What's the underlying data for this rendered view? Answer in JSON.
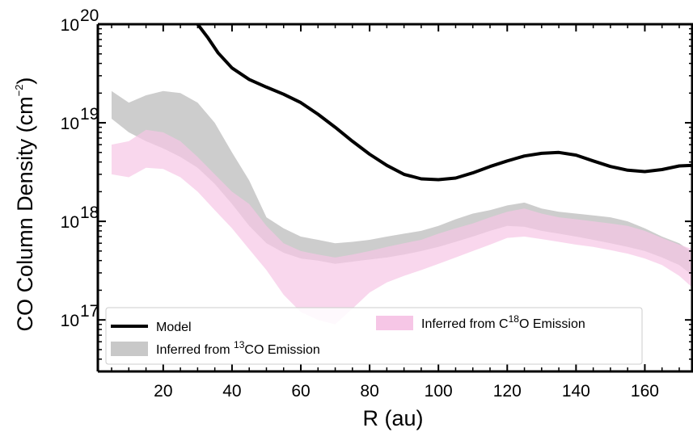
{
  "chart_data": {
    "type": "area",
    "xlabel": "R (au)",
    "ylabel_prefix": "CO Column Density (cm",
    "ylabel_sup": "−2",
    "ylabel_suffix": ")",
    "xlim": [
      1,
      174
    ],
    "ylim": [
      3e+16,
      1e+20
    ],
    "yscale": "log",
    "grid": false,
    "legend_position": "bottom-left",
    "x_ticks": [
      20,
      40,
      60,
      80,
      100,
      120,
      140,
      160
    ],
    "x_tick_labels": [
      "20",
      "40",
      "60",
      "80",
      "100",
      "120",
      "140",
      "160"
    ],
    "y_ticks": [
      1e+17,
      1e+18,
      1e+19,
      1e+20
    ],
    "y_tick_labels": [
      {
        "base": "10",
        "exp": "17"
      },
      {
        "base": "10",
        "exp": "18"
      },
      {
        "base": "10",
        "exp": "19"
      },
      {
        "base": "10",
        "exp": "20"
      }
    ],
    "colors": {
      "model": "#000000",
      "band_13co": "#c8c8c8",
      "band_c18o": "#f6c6e6"
    },
    "legend": {
      "model": "Model",
      "band_13co_prefix": "Inferred from ",
      "band_13co_sup": "13",
      "band_13co_suffix": "CO Emission",
      "band_c18o_prefix": "Inferred from C",
      "band_c18o_sup": "18",
      "band_c18o_suffix": "O Emission"
    },
    "series": [
      {
        "key": "model",
        "style": "line",
        "x": [
          30,
          33,
          36,
          40,
          45,
          50,
          55,
          60,
          65,
          70,
          75,
          80,
          85,
          90,
          95,
          100,
          105,
          110,
          115,
          120,
          125,
          130,
          135,
          140,
          145,
          150,
          155,
          160,
          165,
          170,
          174
        ],
        "y": [
          1e+20,
          7.3e+19,
          5.1e+19,
          3.6e+19,
          2.75e+19,
          2.3e+19,
          1.95e+19,
          1.6e+19,
          1.22e+19,
          9e+18,
          6.5e+18,
          4.8e+18,
          3.7e+18,
          3e+18,
          2.7e+18,
          2.65e+18,
          2.75e+18,
          3.1e+18,
          3.6e+18,
          4.1e+18,
          4.6e+18,
          4.9e+18,
          5e+18,
          4.7e+18,
          4.1e+18,
          3.6e+18,
          3.3e+18,
          3.2e+18,
          3.35e+18,
          3.65e+18,
          3.7e+18
        ]
      },
      {
        "key": "band_13co",
        "style": "band",
        "x": [
          5,
          10,
          15,
          20,
          25,
          30,
          35,
          40,
          45,
          50,
          55,
          60,
          65,
          70,
          75,
          80,
          85,
          90,
          95,
          100,
          105,
          110,
          115,
          120,
          125,
          130,
          135,
          140,
          145,
          150,
          155,
          160,
          165,
          170,
          174
        ],
        "upper": [
          2.1e+19,
          1.6e+19,
          1.9e+19,
          2.1e+19,
          2e+19,
          1.6e+19,
          1e+19,
          5e+18,
          2.6e+18,
          1.1e+18,
          8.5e+17,
          7e+17,
          6.5e+17,
          6e+17,
          6.2e+17,
          6.5e+17,
          7e+17,
          7.5e+17,
          8e+17,
          9e+17,
          1.05e+18,
          1.2e+18,
          1.3e+18,
          1.45e+18,
          1.55e+18,
          1.35e+18,
          1.25e+18,
          1.2e+18,
          1.15e+18,
          1.1e+18,
          1e+18,
          8.5e+17,
          7e+17,
          6e+17,
          4.8e+17
        ],
        "lower": [
          1.1e+19,
          8e+18,
          6.5e+18,
          5.5e+18,
          4.5e+18,
          3.5e+18,
          2.4e+18,
          1.5e+18,
          9e+17,
          6e+17,
          4.8e+17,
          4.2e+17,
          4e+17,
          3.7e+17,
          3.9e+17,
          4.1e+17,
          4.3e+17,
          4.6e+17,
          5e+17,
          5.5e+17,
          6.2e+17,
          7e+17,
          8e+17,
          9e+17,
          8.8e+17,
          8e+17,
          7.5e+17,
          7e+17,
          6.5e+17,
          6e+17,
          5.5e+17,
          5e+17,
          4.3e+17,
          3.6e+17,
          2.8e+17
        ]
      },
      {
        "key": "band_c18o",
        "style": "band",
        "x": [
          5,
          10,
          15,
          20,
          25,
          30,
          35,
          40,
          45,
          50,
          55,
          60,
          65,
          70,
          75,
          80,
          85,
          90,
          95,
          100,
          105,
          110,
          115,
          120,
          125,
          130,
          135,
          140,
          145,
          150,
          155,
          160,
          165,
          170,
          174
        ],
        "upper": [
          6e+18,
          6.5e+18,
          8.5e+18,
          8e+18,
          6.5e+18,
          4.5e+18,
          3e+18,
          2e+18,
          1.5e+18,
          9e+17,
          6e+17,
          5e+17,
          4.6e+17,
          4.3e+17,
          4.6e+17,
          5e+17,
          5.5e+17,
          6e+17,
          6.5e+17,
          7.5e+17,
          8.5e+17,
          9.5e+17,
          1.1e+18,
          1.25e+18,
          1.35e+18,
          1.2e+18,
          1.1e+18,
          1.05e+18,
          1e+18,
          9.5e+17,
          9e+17,
          8e+17,
          6.8e+17,
          5.8e+17,
          5.2e+17
        ],
        "lower": [
          3e+18,
          2.8e+18,
          3.5e+18,
          3.4e+18,
          2.8e+18,
          2e+18,
          1.3e+18,
          8.5e+17,
          5.2e+17,
          3.2e+17,
          1.8e+17,
          1.2e+17,
          1e+17,
          9e+16,
          1.3e+17,
          1.9e+17,
          2.4e+17,
          2.8e+17,
          3.2e+17,
          3.7e+17,
          4.3e+17,
          5e+17,
          5.8e+17,
          6.8e+17,
          7e+17,
          6.6e+17,
          6.2e+17,
          5.8e+17,
          5.5e+17,
          5.1e+17,
          4.7e+17,
          4.2e+17,
          3.6e+17,
          2.8e+17,
          2.1e+17
        ]
      }
    ]
  }
}
